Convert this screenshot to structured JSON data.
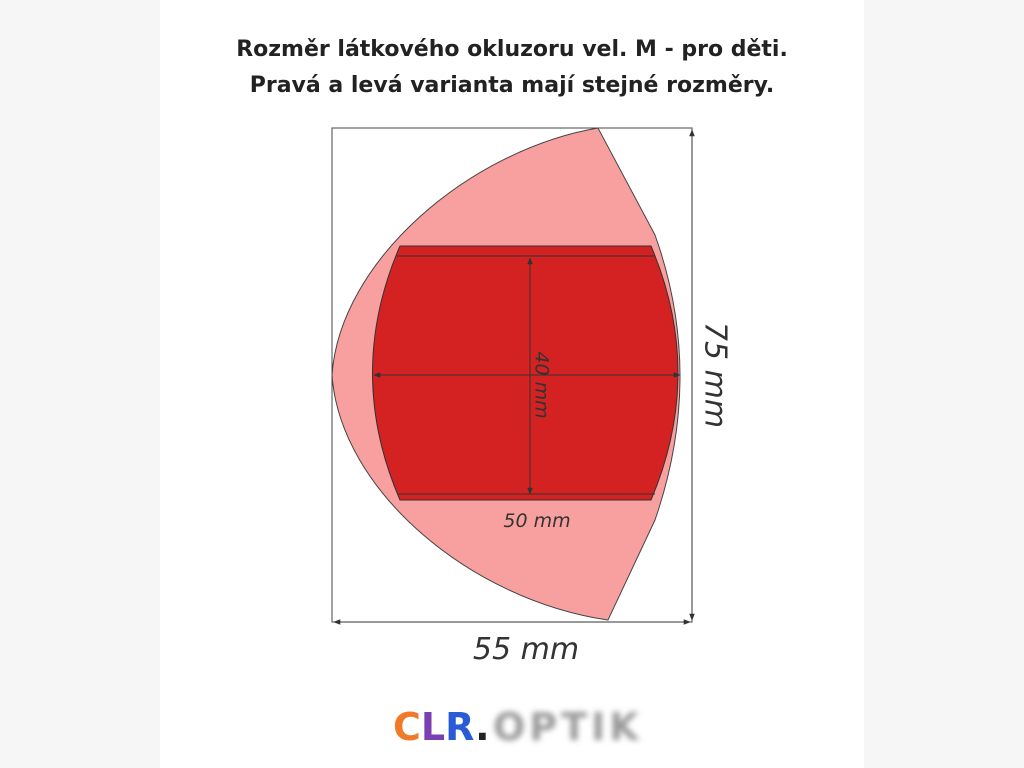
{
  "header": {
    "title_line1": "Rozměr látkového okluzoru vel. M - pro děti.",
    "title_line2": "Pravá a levá varianta mají stejné rozměry."
  },
  "dimensions": {
    "height": "75 mm",
    "width": "55 mm",
    "inner_height": "40 mm",
    "inner_width": "50 mm"
  },
  "logo": {
    "c": "C",
    "l": "L",
    "r": "R",
    "dot": ".",
    "rest": "OPTIK"
  }
}
